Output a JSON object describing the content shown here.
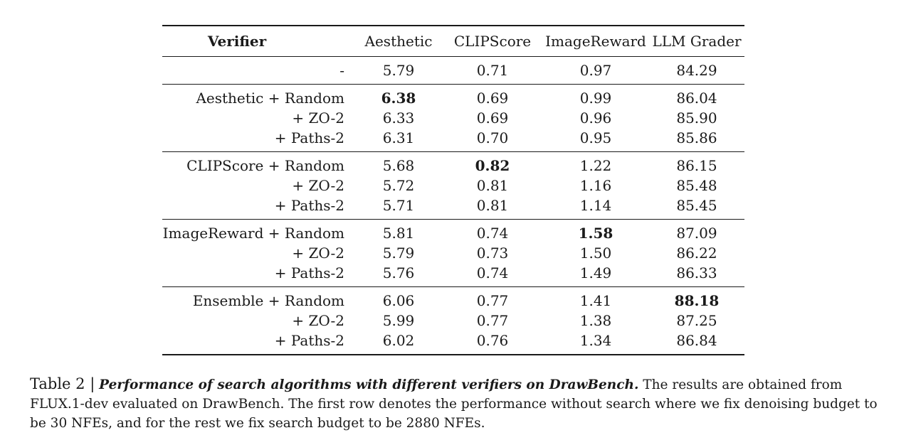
{
  "table": {
    "headers": [
      "Verifier",
      "Aesthetic",
      "CLIPScore",
      "ImageReward",
      "LLM Grader"
    ],
    "baseline": {
      "verifier": "-",
      "values": [
        "5.79",
        "0.71",
        "0.97",
        "84.29"
      ]
    },
    "groups": [
      {
        "rows": [
          {
            "verifier": "Aesthetic + Random",
            "values": [
              "6.38",
              "0.69",
              "0.99",
              "86.04"
            ],
            "bold": [
              0
            ]
          },
          {
            "verifier": "+ ZO-2",
            "values": [
              "6.33",
              "0.69",
              "0.96",
              "85.90"
            ],
            "bold": []
          },
          {
            "verifier": "+ Paths-2",
            "values": [
              "6.31",
              "0.70",
              "0.95",
              "85.86"
            ],
            "bold": []
          }
        ]
      },
      {
        "rows": [
          {
            "verifier": "CLIPScore + Random",
            "values": [
              "5.68",
              "0.82",
              "1.22",
              "86.15"
            ],
            "bold": [
              1
            ]
          },
          {
            "verifier": "+ ZO-2",
            "values": [
              "5.72",
              "0.81",
              "1.16",
              "85.48"
            ],
            "bold": []
          },
          {
            "verifier": "+ Paths-2",
            "values": [
              "5.71",
              "0.81",
              "1.14",
              "85.45"
            ],
            "bold": []
          }
        ]
      },
      {
        "rows": [
          {
            "verifier": "ImageReward + Random",
            "values": [
              "5.81",
              "0.74",
              "1.58",
              "87.09"
            ],
            "bold": [
              2
            ]
          },
          {
            "verifier": "+ ZO-2",
            "values": [
              "5.79",
              "0.73",
              "1.50",
              "86.22"
            ],
            "bold": []
          },
          {
            "verifier": "+ Paths-2",
            "values": [
              "5.76",
              "0.74",
              "1.49",
              "86.33"
            ],
            "bold": []
          }
        ]
      },
      {
        "rows": [
          {
            "verifier": "Ensemble + Random",
            "values": [
              "6.06",
              "0.77",
              "1.41",
              "88.18"
            ],
            "bold": [
              3
            ]
          },
          {
            "verifier": "+ ZO-2",
            "values": [
              "5.99",
              "0.77",
              "1.38",
              "87.25"
            ],
            "bold": []
          },
          {
            "verifier": "+ Paths-2",
            "values": [
              "6.02",
              "0.76",
              "1.34",
              "86.84"
            ],
            "bold": []
          }
        ]
      }
    ]
  },
  "caption": {
    "label": "Table 2 |",
    "title": "Performance of search algorithms with different verifiers on DrawBench.",
    "body": "The results are obtained from FLUX.1-dev evaluated on DrawBench. The first row denotes the performance without search where we fix denoising budget to be 30 NFEs, and for the rest we fix search budget to be 2880 NFEs."
  }
}
